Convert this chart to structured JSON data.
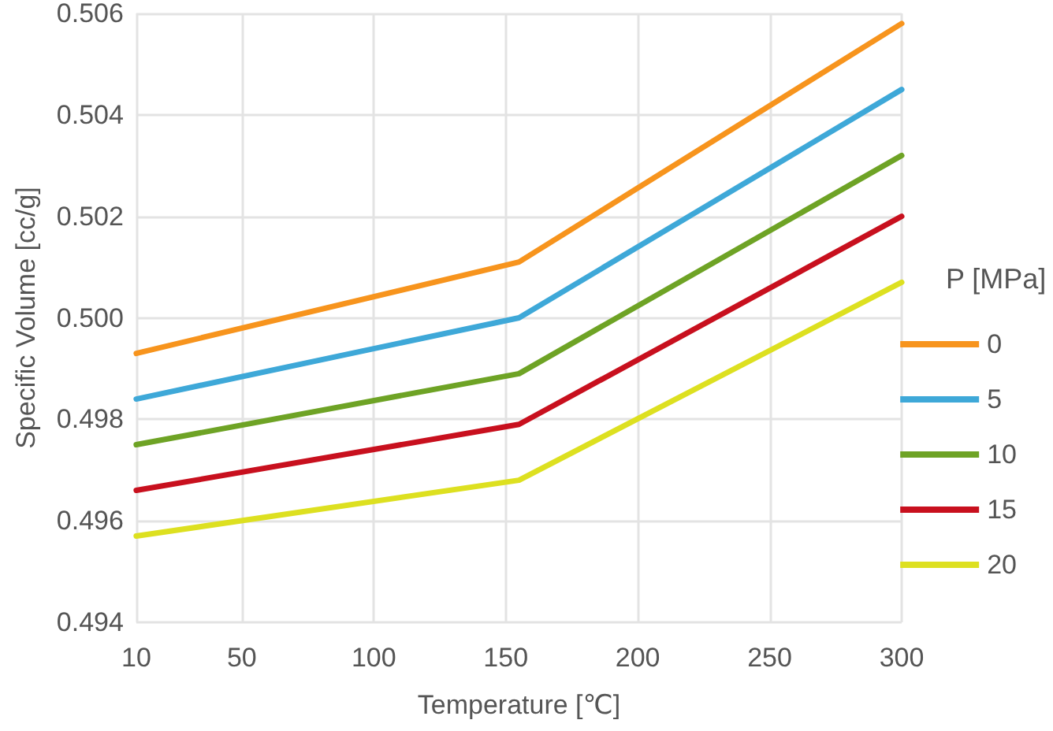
{
  "chart_data": {
    "type": "line",
    "xlabel": "Temperature [℃]",
    "ylabel": "Specific Volume [cc/g]",
    "legend_title": "P [MPa]",
    "x": [
      10,
      155,
      300
    ],
    "series": [
      {
        "name": "0",
        "color": "#f7941d",
        "values": [
          0.4993,
          0.5011,
          0.5058
        ]
      },
      {
        "name": "5",
        "color": "#3ea8d8",
        "values": [
          0.4984,
          0.5,
          0.5045
        ]
      },
      {
        "name": "10",
        "color": "#6ea325",
        "values": [
          0.4975,
          0.4989,
          0.5032
        ]
      },
      {
        "name": "15",
        "color": "#c8101e",
        "values": [
          0.4966,
          0.4979,
          0.502
        ]
      },
      {
        "name": "20",
        "color": "#dde020",
        "values": [
          0.4957,
          0.4968,
          0.5007
        ]
      }
    ],
    "xlim": [
      10,
      300
    ],
    "xticks": [
      10,
      50,
      100,
      150,
      200,
      250,
      300
    ],
    "ylim": [
      0.494,
      0.506
    ],
    "yticks": [
      0.494,
      0.496,
      0.498,
      {
        "value": 0.5,
        "label": "0.500"
      },
      0.502,
      0.504,
      0.506
    ],
    "grid": true,
    "legend": "right",
    "marker": "none",
    "line_style": "solid"
  }
}
